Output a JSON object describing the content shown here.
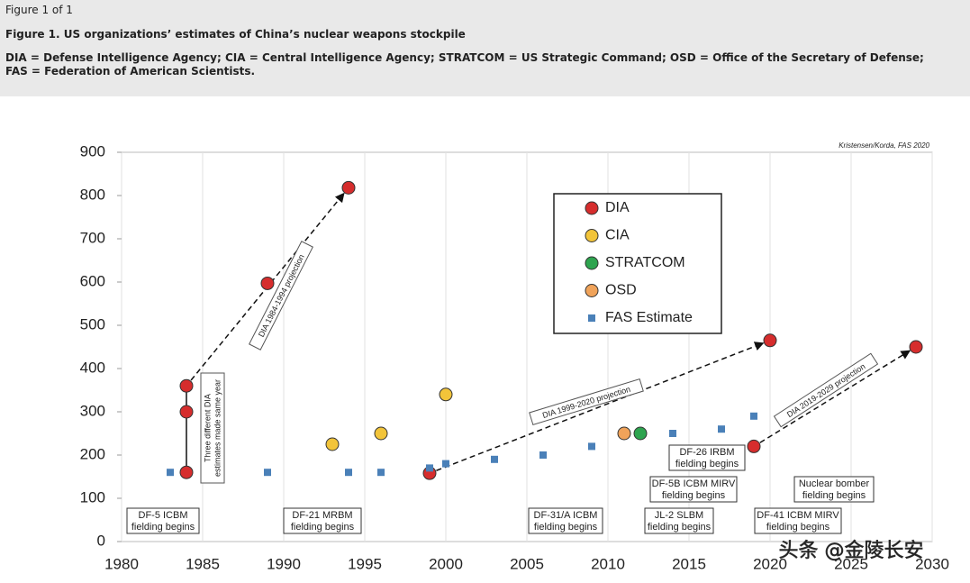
{
  "header": {
    "figure_count": "Figure 1 of 1",
    "caption": "Figure 1. US organizations’ estimates of China’s nuclear weapons stockpile",
    "definitions": "DIA = Defense Intelligence Agency; CIA = Central Intelligence Agency; STRATCOM = US Strategic Command; OSD = Office of the Secretary of Defense; FAS = Federation of American Scientists."
  },
  "chart_data": {
    "type": "scatter",
    "credit": "Kristensen/Korda, FAS 2020",
    "xlim": [
      1980,
      2030
    ],
    "xticks": [
      1980,
      1985,
      1990,
      1995,
      2000,
      2005,
      2010,
      2015,
      2020,
      2025,
      2030
    ],
    "ylim": [
      0,
      900
    ],
    "yticks": [
      0,
      100,
      200,
      300,
      400,
      500,
      600,
      700,
      800,
      900
    ],
    "grid": true,
    "legend": "top-right",
    "series": [
      {
        "name": "DIA",
        "color": "#d62d2d",
        "marker": "circle",
        "x": [
          1984,
          1984,
          1984,
          1989,
          1994,
          1999,
          2020,
          2019,
          2029
        ],
        "values": [
          160,
          300,
          360,
          597,
          818,
          158,
          465,
          220,
          450
        ]
      },
      {
        "name": "CIA",
        "color": "#f2c43a",
        "marker": "circle",
        "x": [
          1993,
          1996,
          2000
        ],
        "values": [
          225,
          250,
          340
        ]
      },
      {
        "name": "STRATCOM",
        "color": "#2ea44f",
        "marker": "circle",
        "x": [
          2012
        ],
        "values": [
          250
        ]
      },
      {
        "name": "OSD",
        "color": "#f0a35a",
        "marker": "circle",
        "x": [
          2011
        ],
        "values": [
          250
        ]
      },
      {
        "name": "FAS Estimate",
        "color": "#4a80b8",
        "marker": "square",
        "x": [
          1983,
          1989,
          1994,
          1996,
          1999,
          2000,
          2003,
          2006,
          2009,
          2014,
          2017,
          2019
        ],
        "values": [
          160,
          160,
          160,
          160,
          170,
          180,
          190,
          200,
          220,
          250,
          260,
          290
        ]
      }
    ],
    "projections": [
      "DIA 1984-1994 projection",
      "DIA 1999-2020 projection",
      "DIA 2019-2029 projection"
    ],
    "same_year_note": [
      "Three different DIA",
      "estimates made same year"
    ],
    "events": [
      [
        "DF-5 ICBM",
        "fielding begins"
      ],
      [
        "DF-21 MRBM",
        "fielding begins"
      ],
      [
        "DF-31/A ICBM",
        "fielding begins"
      ],
      [
        "JL-2 SLBM",
        "fielding begins"
      ],
      [
        "DF-41 ICBM MIRV",
        "fielding begins"
      ],
      [
        "DF-5B ICBM MIRV",
        "fielding begins"
      ],
      [
        "Nuclear bomber",
        "fielding begins"
      ],
      [
        "DF-26 IRBM",
        "fielding begins"
      ]
    ],
    "watermark": "头条 @金陵长安"
  }
}
